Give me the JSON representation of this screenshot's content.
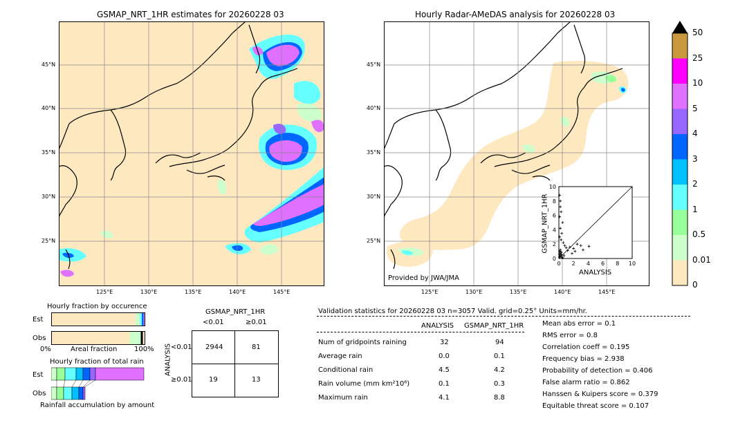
{
  "left_map": {
    "title": "GSMAP_NRT_1HR estimates for 20260228 03",
    "lat_labels": [
      "45°N",
      "40°N",
      "35°N",
      "30°N",
      "25°N"
    ],
    "lon_labels": [
      "125°E",
      "130°E",
      "135°E",
      "140°E",
      "145°E"
    ]
  },
  "right_map": {
    "title": "Hourly Radar-AMeDAS analysis for 20260228 03",
    "lat_labels": [
      "45°N",
      "40°N",
      "35°N",
      "30°N",
      "25°N"
    ],
    "lon_labels": [
      "125°E",
      "130°E",
      "135°E",
      "140°E",
      "145°E"
    ],
    "credit": "Provided by JWA/JMA"
  },
  "colorbar": {
    "labels": [
      "50",
      "25",
      "10",
      "5",
      "4",
      "3",
      "2",
      "1",
      "0.5",
      "0.01",
      "0"
    ],
    "colors": [
      "#c89a3c",
      "#ff00ff",
      "#e070ff",
      "#9966ff",
      "#0066ff",
      "#00c0ff",
      "#66ffff",
      "#99ff99",
      "#ccffcc",
      "#fde8c0"
    ]
  },
  "scatter": {
    "ylabel": "GSMAP_NRT_1HR",
    "xlabel": "ANALYSIS",
    "ticks": [
      "0",
      "2",
      "4",
      "6",
      "8",
      "10"
    ]
  },
  "fraction": {
    "title1": "Hourly fraction by occurence",
    "title2": "Hourly fraction of total rain",
    "est": "Est",
    "obs": "Obs",
    "axis_left": "0%",
    "axis_mid": "Areal fraction",
    "axis_right": "100%",
    "footer": "Rainfall accumulation by amount"
  },
  "contingency": {
    "title": "GSMAP_NRT_1HR",
    "col1": "<0.01",
    "col2": "≥0.01",
    "row_axis": "ANALYSIS",
    "row1": "<0.01",
    "row2": "≥0.01",
    "a": "2944",
    "b": "81",
    "c": "19",
    "d": "13"
  },
  "validation": {
    "header": "Validation statistics for 20260228 03  n=3057 Valid. grid=0.25° Units=mm/hr.",
    "col_analysis": "ANALYSIS",
    "col_gsmap": "GSMAP_NRT_1HR",
    "rows": [
      {
        "label": "Num of gridpoints raining",
        "analysis": "32",
        "gsmap": "94"
      },
      {
        "label": "Average rain",
        "analysis": "0.0",
        "gsmap": "0.1"
      },
      {
        "label": "Conditional rain",
        "analysis": "4.5",
        "gsmap": "4.2"
      },
      {
        "label": "Rain volume (mm km²10⁶)",
        "analysis": "0.1",
        "gsmap": "0.3"
      },
      {
        "label": "Maximum rain",
        "analysis": "4.1",
        "gsmap": "8.8"
      }
    ],
    "scores": [
      "Mean abs error =    0.1",
      "RMS error =    0.8",
      "Correlation coeff =  0.195",
      "Frequency bias =  2.938",
      "Probability of detection =  0.406",
      "False alarm ratio =  0.862",
      "Hanssen & Kuipers score =  0.379",
      "Equitable threat score =  0.107"
    ]
  },
  "chart_data": [
    {
      "type": "scatter",
      "xlabel": "ANALYSIS",
      "ylabel": "GSMAP_NRT_1HR",
      "xlim": [
        0,
        10
      ],
      "ylim": [
        0,
        10
      ],
      "x": [
        0.1,
        0.2,
        0.2,
        0.3,
        0.1,
        0.5,
        0.2,
        0.4,
        0.1,
        0.3,
        0.6,
        0.8,
        1.0,
        0.2,
        0.1,
        0.3,
        1.2,
        1.5,
        2.0,
        2.5,
        3.0,
        3.3,
        0.4,
        0.2,
        0.1,
        0.5,
        0.7,
        0.2,
        1.8,
        2.2,
        4.1,
        0.3,
        0.1,
        0.2,
        0.4
      ],
      "y": [
        8.8,
        8.0,
        7.2,
        6.5,
        5.8,
        5.0,
        4.2,
        3.5,
        3.0,
        2.6,
        2.2,
        1.8,
        1.5,
        1.2,
        1.0,
        0.8,
        1.1,
        1.6,
        1.4,
        2.0,
        1.8,
        1.2,
        0.5,
        0.3,
        0.2,
        0.1,
        0.4,
        0.6,
        0.7,
        1.0,
        1.7,
        0.9,
        0.6,
        0.4,
        0.2
      ]
    },
    {
      "type": "table",
      "title": "GSMAP_NRT_1HR",
      "columns": [
        "<0.01",
        "≥0.01"
      ],
      "rows": [
        "<0.01",
        "≥0.01"
      ],
      "values": [
        [
          2944,
          81
        ],
        [
          19,
          13
        ]
      ]
    }
  ]
}
